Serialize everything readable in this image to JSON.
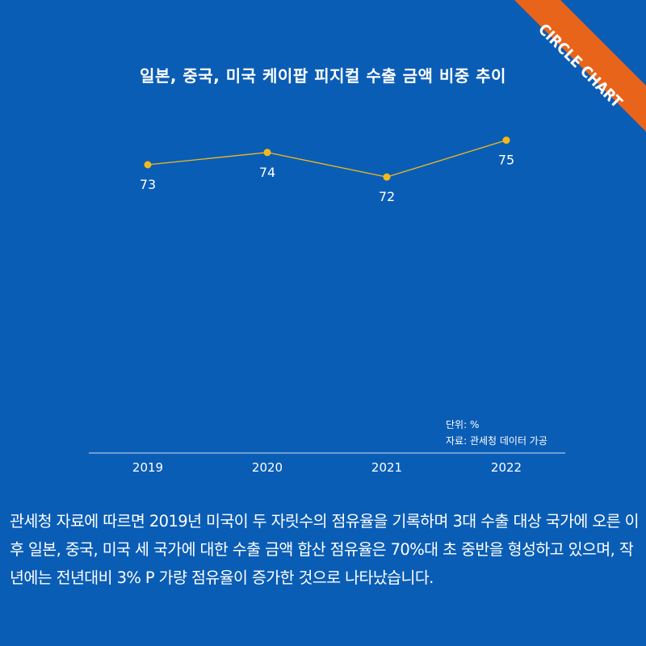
{
  "badge": {
    "label": "CIRCLE CHART",
    "color": "#e8641b"
  },
  "colors": {
    "background": "#0a5db5",
    "series": "#f5b81a"
  },
  "chart_data": {
    "type": "line",
    "title": "일본, 중국, 미국 케이팝 피지컬 수출 금액 비중 추이",
    "categories": [
      "2019",
      "2020",
      "2021",
      "2022"
    ],
    "series": [
      {
        "values": [
          73,
          74,
          72,
          75
        ]
      }
    ],
    "data_labels": [
      "73",
      "74",
      "72",
      "75"
    ],
    "unit_note": "단위: %",
    "source_note": "자료: 관세청 데이터 가공",
    "grid": false,
    "legend": "none"
  },
  "caption": "관세청 자료에 따르면 2019년 미국이 두 자릿수의 점유율을 기록하며 3대 수출 대상 국가에 오른 이후 일본, 중국, 미국 세 국가에 대한 수출 금액 합산 점유율은 70%대 초 중반을 형성하고 있으며, 작년에는 전년대비 3% P 가량 점유율이 증가한 것으로 나타났습니다."
}
